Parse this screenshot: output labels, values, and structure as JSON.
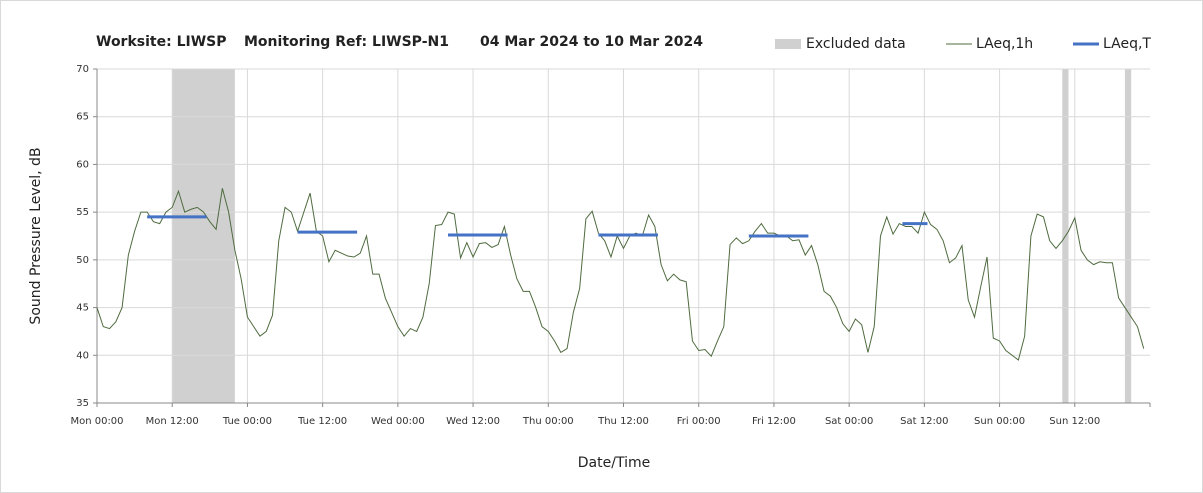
{
  "chart_data": {
    "type": "line",
    "title": [
      "Worksite: LIWSP",
      "Monitoring Ref: LIWSP-N1",
      "04 Mar 2024 to 10 Mar 2024"
    ],
    "xlabel": "Date/Time",
    "ylabel": "Sound Pressure Level, dB",
    "xlim": [
      0,
      168
    ],
    "ylim": [
      35,
      70
    ],
    "yticks": [
      35,
      40,
      45,
      50,
      55,
      60,
      65,
      70
    ],
    "xticks": [
      {
        "value": 0,
        "label": "Mon 00:00"
      },
      {
        "value": 12,
        "label": "Mon 12:00"
      },
      {
        "value": 24,
        "label": "Tue 00:00"
      },
      {
        "value": 36,
        "label": "Tue 12:00"
      },
      {
        "value": 48,
        "label": "Wed 00:00"
      },
      {
        "value": 60,
        "label": "Wed 12:00"
      },
      {
        "value": 72,
        "label": "Thu 00:00"
      },
      {
        "value": 84,
        "label": "Thu 12:00"
      },
      {
        "value": 96,
        "label": "Fri 00:00"
      },
      {
        "value": 108,
        "label": "Fri 12:00"
      },
      {
        "value": 120,
        "label": "Sat 00:00"
      },
      {
        "value": 132,
        "label": "Sat 12:00"
      },
      {
        "value": 144,
        "label": "Sun 00:00"
      },
      {
        "value": 156,
        "label": "Sun 12:00"
      }
    ],
    "grid": true,
    "excluded": {
      "name": "Excluded data",
      "color": "#d0d0d0",
      "starts": [
        12,
        154,
        164
      ],
      "ends": [
        22,
        155,
        165
      ]
    },
    "series": [
      {
        "name": "LAeq,1h",
        "color": "#4f6b3f",
        "x": [
          0,
          1,
          2,
          3,
          4,
          5,
          6,
          7,
          8,
          9,
          10,
          11,
          12,
          13,
          14,
          15,
          16,
          17,
          18,
          19,
          20,
          21,
          22,
          23,
          24,
          25,
          26,
          27,
          28,
          29,
          30,
          31,
          32,
          33,
          34,
          35,
          36,
          37,
          38,
          39,
          40,
          41,
          42,
          43,
          44,
          45,
          46,
          47,
          48,
          49,
          50,
          51,
          52,
          53,
          54,
          55,
          56,
          57,
          58,
          59,
          60,
          61,
          62,
          63,
          64,
          65,
          66,
          67,
          68,
          69,
          70,
          71,
          72,
          73,
          74,
          75,
          76,
          77,
          78,
          79,
          80,
          81,
          82,
          83,
          84,
          85,
          86,
          87,
          88,
          89,
          90,
          91,
          92,
          93,
          94,
          95,
          96,
          97,
          98,
          99,
          100,
          101,
          102,
          103,
          104,
          105,
          106,
          107,
          108,
          109,
          110,
          111,
          112,
          113,
          114,
          115,
          116,
          117,
          118,
          119,
          120,
          121,
          122,
          123,
          124,
          125,
          126,
          127,
          128,
          129,
          130,
          131,
          132,
          133,
          134,
          135,
          136,
          137,
          138,
          139,
          140,
          141,
          142,
          143,
          144,
          145,
          146,
          147,
          148,
          149,
          150,
          151,
          152,
          153,
          154,
          155,
          156,
          157,
          158,
          159,
          160,
          161,
          162,
          163,
          164,
          165,
          166,
          167
        ],
        "values": [
          45,
          43,
          42.8,
          43.5,
          45,
          50.5,
          53,
          55,
          55,
          54,
          53.8,
          55,
          55.5,
          57.2,
          55,
          55.3,
          55.5,
          55,
          54,
          53.2,
          57.5,
          55,
          51,
          48,
          44,
          43,
          42,
          42.5,
          44.2,
          52,
          55.5,
          55,
          53,
          55,
          57,
          53,
          52.5,
          49.8,
          51,
          50.7,
          50.4,
          50.3,
          50.7,
          52.5,
          48.5,
          48.5,
          46,
          44.5,
          43,
          42,
          42.8,
          42.5,
          44,
          47.5,
          53.6,
          53.7,
          55,
          54.8,
          50.2,
          51.8,
          50.3,
          51.7,
          51.8,
          51.3,
          51.6,
          53.5,
          50.5,
          48,
          46.7,
          46.7,
          45,
          43,
          42.5,
          41.5,
          40.3,
          40.7,
          44.5,
          47,
          54.3,
          55.1,
          52.8,
          52,
          50.3,
          52.5,
          51.2,
          52.5,
          52.8,
          52.5,
          54.7,
          53.5,
          49.5,
          47.8,
          48.5,
          47.9,
          47.7,
          41.5,
          40.5,
          40.6,
          39.9,
          41.5,
          43,
          51.6,
          52.3,
          51.7,
          52,
          53,
          53.8,
          52.8,
          52.8,
          52.5,
          52.5,
          52,
          52.1,
          50.5,
          51.5,
          49.5,
          46.7,
          46.2,
          45,
          43.3,
          42.5,
          43.8,
          43.2,
          40.3,
          43,
          52.5,
          54.5,
          52.7,
          53.8,
          53.5,
          53.5,
          52.8,
          55,
          53.7,
          53.2,
          52,
          49.7,
          50.2,
          51.5,
          45.8,
          44,
          47.2,
          50.3,
          41.8,
          41.5,
          40.5,
          40,
          39.5,
          42,
          52.5,
          54.8,
          54.5,
          52,
          51.2,
          52,
          53,
          54.4,
          51,
          50,
          49.5,
          49.8,
          49.7,
          49.7,
          46,
          45,
          44,
          43,
          40.7
        ]
      },
      {
        "name": "LAeq,T",
        "color": "#4472c4",
        "starts": [
          8,
          32,
          56,
          80,
          104,
          128.5
        ],
        "ends": [
          17.5,
          41.5,
          65.5,
          89.5,
          113.5,
          132.5
        ],
        "values": [
          54.5,
          52.9,
          52.6,
          52.6,
          52.5,
          53.8
        ]
      }
    ]
  }
}
